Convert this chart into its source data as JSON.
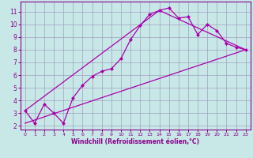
{
  "xlabel": "Windchill (Refroidissement éolien,°C)",
  "background_color": "#c8e8e8",
  "grid_color": "#a0a0c0",
  "line_color": "#aa00aa",
  "marker_color": "#aa00aa",
  "xlim": [
    -0.5,
    23.5
  ],
  "ylim": [
    1.7,
    11.8
  ],
  "xticks": [
    0,
    1,
    2,
    3,
    4,
    5,
    6,
    7,
    8,
    9,
    10,
    11,
    12,
    13,
    14,
    15,
    16,
    17,
    18,
    19,
    20,
    21,
    22,
    23
  ],
  "yticks": [
    2,
    3,
    4,
    5,
    6,
    7,
    8,
    9,
    10,
    11
  ],
  "line1_x": [
    0,
    1,
    2,
    3,
    4,
    5,
    6,
    7,
    8,
    9,
    10,
    11,
    12,
    13,
    14,
    15,
    16,
    17,
    18,
    19,
    20,
    21,
    22,
    23
  ],
  "line1_y": [
    3.2,
    2.2,
    3.7,
    3.0,
    2.2,
    4.2,
    5.2,
    5.9,
    6.3,
    6.5,
    7.3,
    8.8,
    9.9,
    10.8,
    11.1,
    11.3,
    10.5,
    10.6,
    9.2,
    10.0,
    9.5,
    8.5,
    8.2,
    8.0
  ],
  "line2_x": [
    0,
    23
  ],
  "line2_y": [
    2.2,
    8.0
  ],
  "line3_x": [
    0,
    14,
    23
  ],
  "line3_y": [
    3.2,
    11.1,
    8.0
  ]
}
